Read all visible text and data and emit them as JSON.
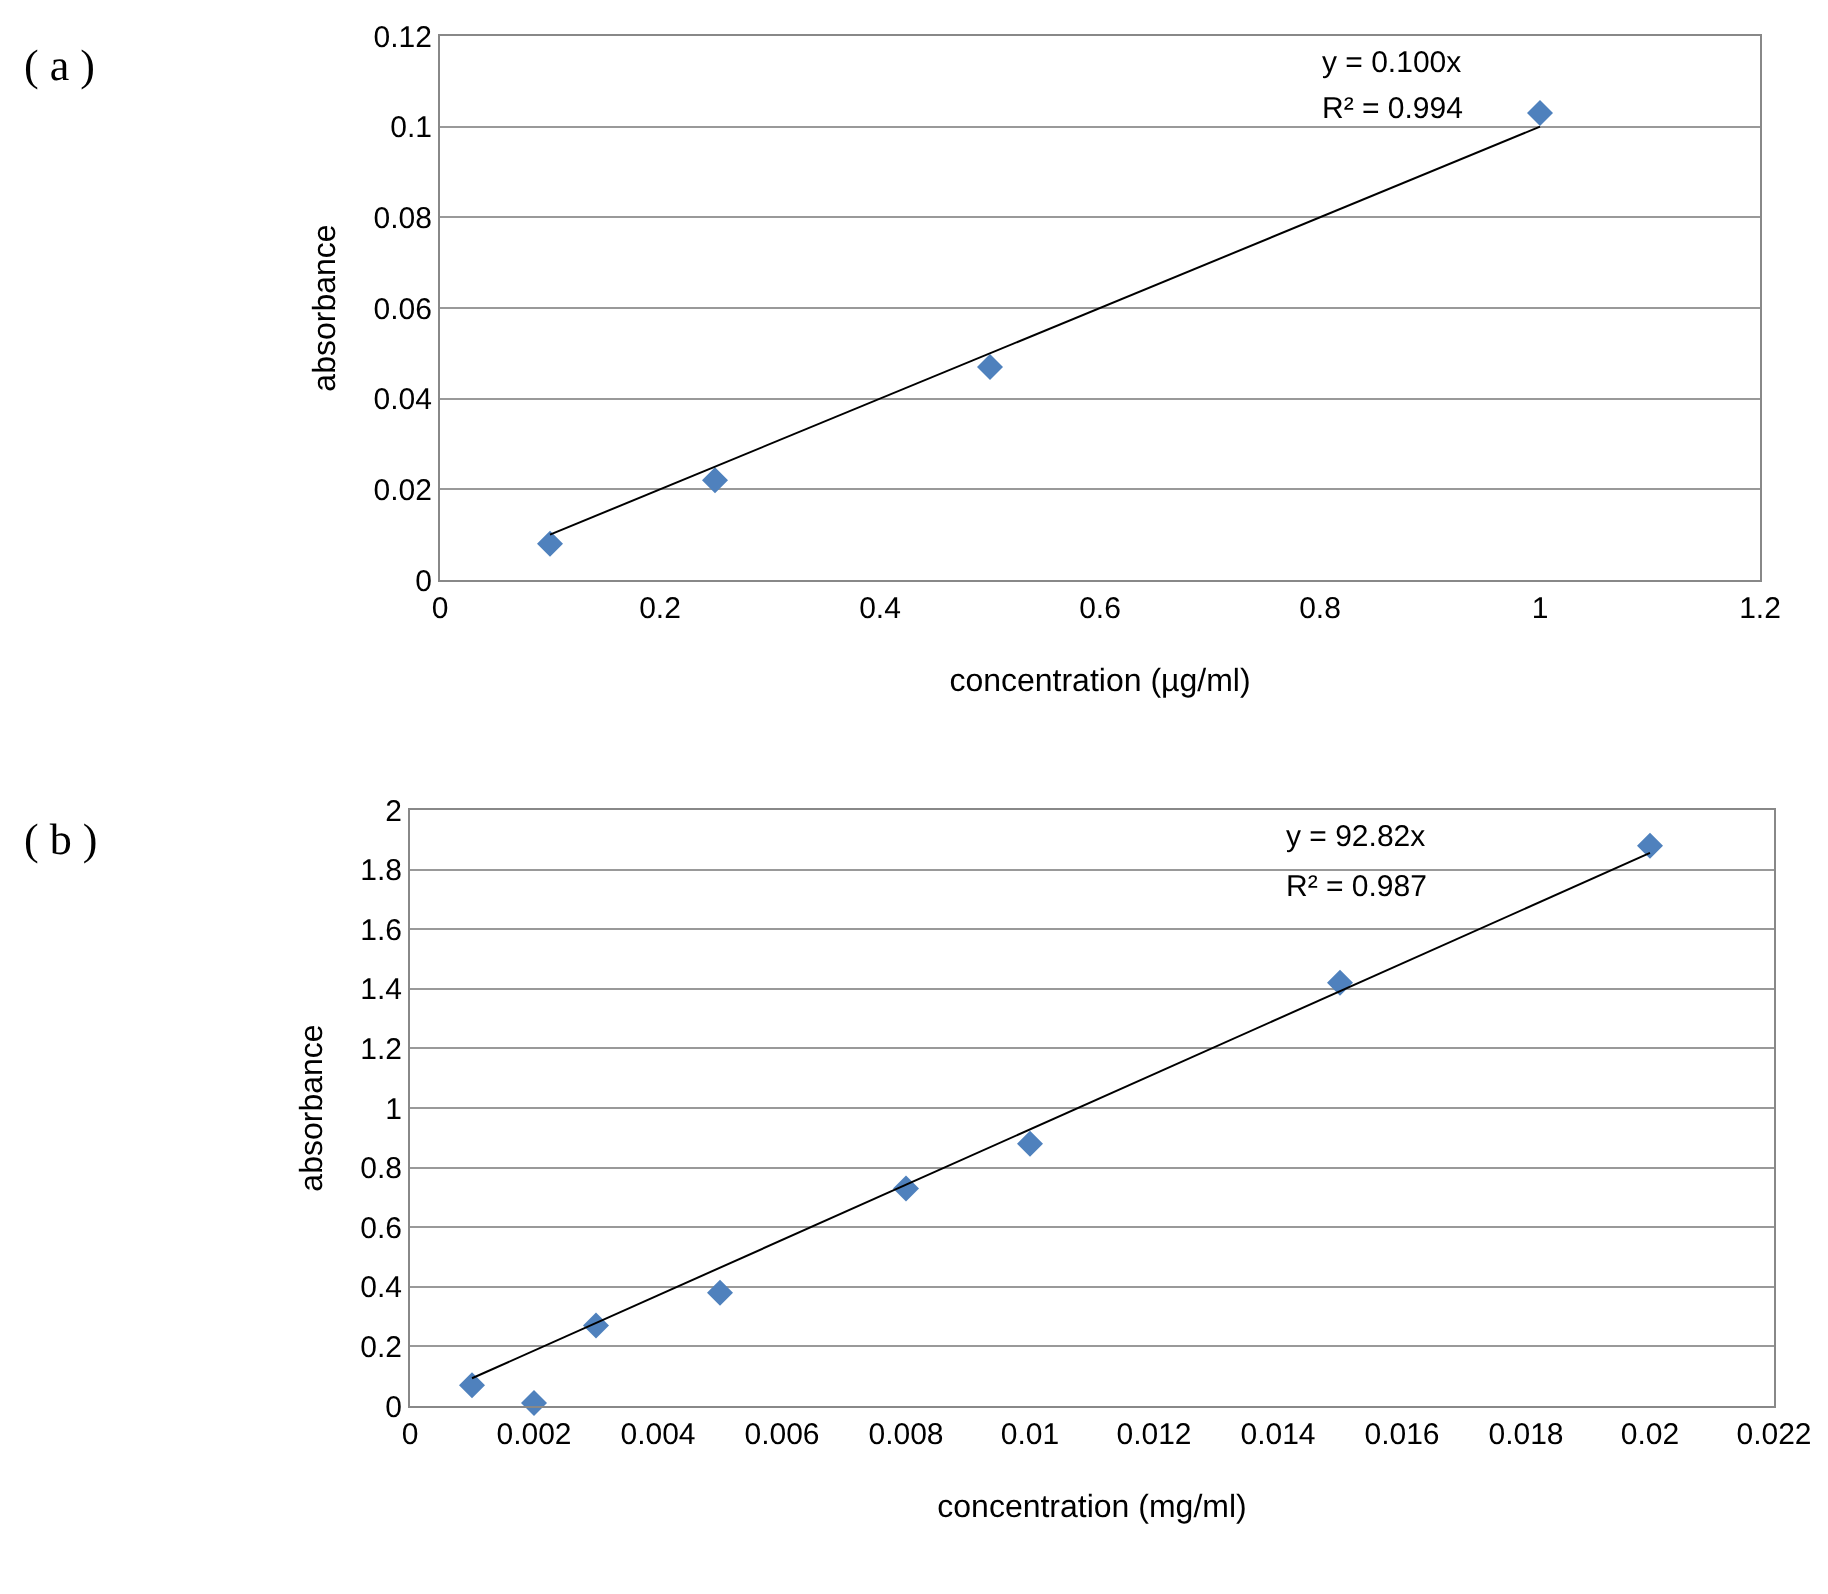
{
  "chart_data": [
    {
      "type": "scatter",
      "xlabel": "concentration (µg/ml)",
      "ylabel": "absorbance",
      "annotations": [
        "( a )",
        "y = 0.100x",
        "R² = 0.994"
      ],
      "marker": "diamond",
      "grid": "y",
      "xlim": [
        0,
        1.2
      ],
      "xticks": [
        0,
        0.2,
        0.4,
        0.6,
        0.8,
        1,
        1.2
      ],
      "ylim": [
        0,
        0.12
      ],
      "yticks": [
        0,
        0.02,
        0.04,
        0.06,
        0.08,
        0.1,
        0.12
      ],
      "series": [
        {
          "type": "scatter",
          "color": "#4f81bd",
          "x": [
            0.1,
            0.25,
            0.5,
            1
          ],
          "values": [
            0.008,
            0.022,
            0.047,
            0.103
          ]
        },
        {
          "type": "line",
          "color": "#000000",
          "marker": "none",
          "x": [
            0.1,
            1
          ],
          "values": [
            0.01,
            0.1
          ]
        }
      ]
    },
    {
      "type": "scatter",
      "xlabel": "concentration (mg/ml)",
      "ylabel": "absorbance",
      "annotations": [
        "( b )",
        "y = 92.82x",
        "R² = 0.987"
      ],
      "marker": "diamond",
      "grid": "y",
      "xlim": [
        0,
        0.022
      ],
      "xticks": [
        0,
        0.002,
        0.004,
        0.006,
        0.008,
        0.01,
        0.012,
        0.014,
        0.016,
        0.018,
        0.02,
        0.022
      ],
      "ylim": [
        0,
        2
      ],
      "yticks": [
        0,
        0.2,
        0.4,
        0.6,
        0.8,
        1,
        1.2,
        1.4,
        1.6,
        1.8,
        2
      ],
      "series": [
        {
          "type": "scatter",
          "color": "#4f81bd",
          "x": [
            0.001,
            0.002,
            0.003,
            0.005,
            0.008,
            0.01,
            0.015,
            0.02
          ],
          "values": [
            0.07,
            0.01,
            0.27,
            0.38,
            0.73,
            0.88,
            1.42,
            1.88
          ]
        },
        {
          "type": "line",
          "color": "#000000",
          "marker": "none",
          "x": [
            0.001,
            0.02
          ],
          "values": [
            0.093,
            1.856
          ]
        }
      ]
    }
  ]
}
